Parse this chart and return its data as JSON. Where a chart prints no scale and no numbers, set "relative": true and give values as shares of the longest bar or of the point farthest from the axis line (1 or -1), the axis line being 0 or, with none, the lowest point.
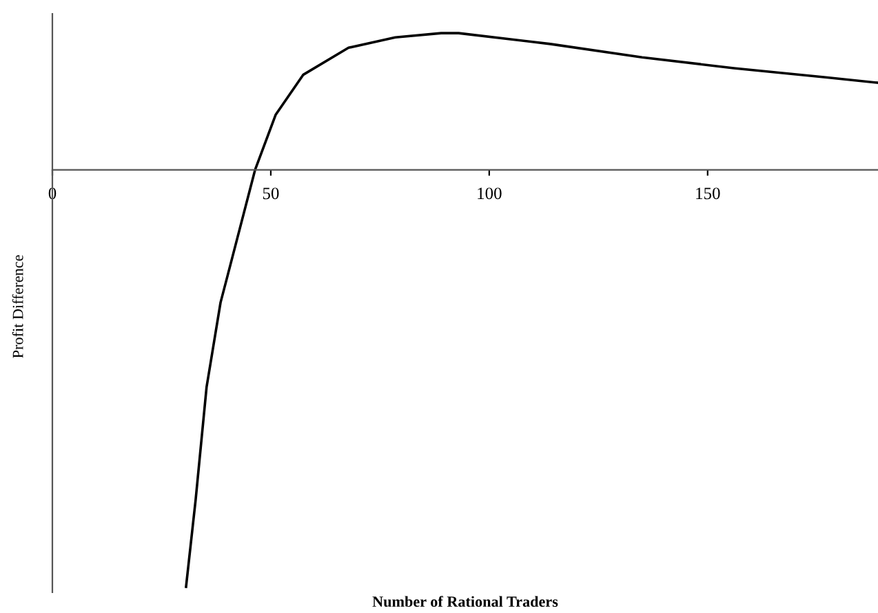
{
  "chart_data": {
    "type": "line",
    "xlabel": "Number of Rational Traders",
    "ylabel": "Profit Difference",
    "relative": true,
    "xlim": [
      0,
      189
    ],
    "xticks": [
      0,
      50,
      100,
      150
    ],
    "grid": false,
    "legend": false,
    "marker": "none",
    "line_style": "solid",
    "series": [
      {
        "color": "#000000",
        "x": [
          30.6,
          32.8,
          35.3,
          38.5,
          40.1,
          46.4,
          51.1,
          57.4,
          67.8,
          78.5,
          89,
          93,
          114,
          135,
          156,
          177,
          189
        ],
        "values": [
          -1,
          -0.791,
          -0.521,
          -0.318,
          -0.254,
          0,
          0.132,
          0.228,
          0.293,
          0.318,
          0.328,
          0.328,
          0.302,
          0.27,
          0.244,
          0.222,
          0.209
        ]
      }
    ]
  }
}
